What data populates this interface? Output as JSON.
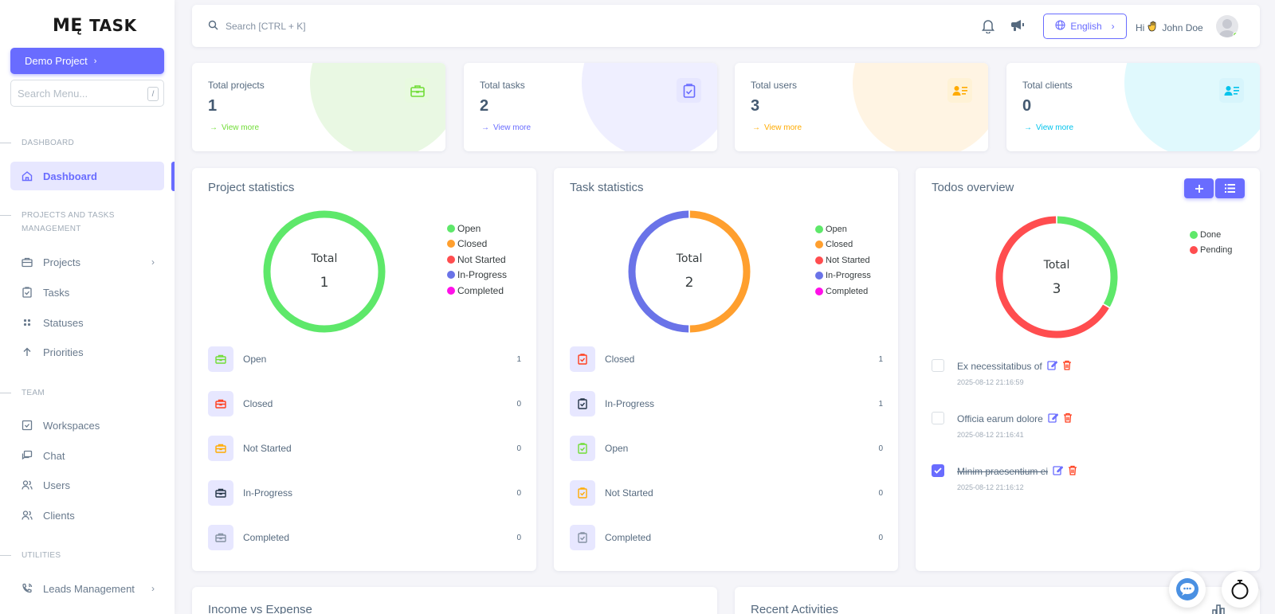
{
  "sidebar": {
    "logo_me": "MĘ",
    "logo_task": "TASK",
    "project_button": "Demo Project",
    "search_placeholder": "Search Menu...",
    "search_shortcut": "/",
    "sections": {
      "dashboard": "DASHBOARD",
      "projects": "PROJECTS AND TASKS MANAGEMENT",
      "team": "TEAM",
      "utilities": "UTILITIES"
    },
    "items": {
      "dashboard": "Dashboard",
      "projects": "Projects",
      "tasks": "Tasks",
      "statuses": "Statuses",
      "priorities": "Priorities",
      "workspaces": "Workspaces",
      "chat": "Chat",
      "users": "Users",
      "clients": "Clients",
      "leads": "Leads Management"
    }
  },
  "topbar": {
    "search_placeholder": "Search [CTRL + K]",
    "language": "English",
    "greeting_hi": "Hi",
    "user_name": "John Doe"
  },
  "stats": [
    {
      "label": "Total projects",
      "value": "1",
      "more": "View more",
      "color": "#71dd37"
    },
    {
      "label": "Total tasks",
      "value": "2",
      "more": "View more",
      "color": "#696cff"
    },
    {
      "label": "Total users",
      "value": "3",
      "more": "View more",
      "color": "#ffab00"
    },
    {
      "label": "Total clients",
      "value": "0",
      "more": "View more",
      "color": "#03c3ec"
    }
  ],
  "project_stats": {
    "title": "Project statistics",
    "total_label": "Total",
    "total_value": "1",
    "legend": [
      "Open",
      "Closed",
      "Not Started",
      "In-Progress",
      "Completed"
    ],
    "legend_colors": [
      "#5ee86a",
      "#ff9f2e",
      "#ff4d4f",
      "#6a73e8",
      "#ff10e8"
    ],
    "rows": [
      {
        "label": "Open",
        "value": "1",
        "color": "#71dd37"
      },
      {
        "label": "Closed",
        "value": "0",
        "color": "#ff3e1d"
      },
      {
        "label": "Not Started",
        "value": "0",
        "color": "#ffab00"
      },
      {
        "label": "In-Progress",
        "value": "0",
        "color": "#233446"
      },
      {
        "label": "Completed",
        "value": "0",
        "color": "#8592a3"
      }
    ]
  },
  "task_stats": {
    "title": "Task statistics",
    "total_label": "Total",
    "total_value": "2",
    "legend": [
      "Open",
      "Closed",
      "Not Started",
      "In-Progress",
      "Completed"
    ],
    "rows": [
      {
        "label": "Closed",
        "value": "1",
        "color": "#ff3e1d"
      },
      {
        "label": "In-Progress",
        "value": "1",
        "color": "#233446"
      },
      {
        "label": "Open",
        "value": "0",
        "color": "#71dd37"
      },
      {
        "label": "Not Started",
        "value": "0",
        "color": "#ffab00"
      },
      {
        "label": "Completed",
        "value": "0",
        "color": "#8592a3"
      }
    ]
  },
  "todos": {
    "title": "Todos overview",
    "total_label": "Total",
    "total_value": "3",
    "legend": [
      "Done",
      "Pending"
    ],
    "legend_colors": [
      "#5ee86a",
      "#ff4d4f"
    ],
    "items": [
      {
        "text": "Ex necessitatibus of",
        "date": "2025-08-12 21:16:59",
        "done": false
      },
      {
        "text": "Officia earum dolore",
        "date": "2025-08-12 21:16:41",
        "done": false
      },
      {
        "text": "Minim praesentium ei",
        "date": "2025-08-12 21:16:12",
        "done": true
      }
    ]
  },
  "chart_data": [
    {
      "type": "pie",
      "title": "Project statistics",
      "categories": [
        "Open",
        "Closed",
        "Not Started",
        "In-Progress",
        "Completed"
      ],
      "values": [
        1,
        0,
        0,
        0,
        0
      ]
    },
    {
      "type": "pie",
      "title": "Task statistics",
      "categories": [
        "Open",
        "Closed",
        "Not Started",
        "In-Progress",
        "Completed"
      ],
      "values": [
        0,
        1,
        0,
        1,
        0
      ]
    },
    {
      "type": "pie",
      "title": "Todos overview",
      "categories": [
        "Done",
        "Pending"
      ],
      "values": [
        1,
        2
      ]
    }
  ],
  "bottom": {
    "income_title": "Income vs Expense",
    "activities_title": "Recent Activities"
  }
}
